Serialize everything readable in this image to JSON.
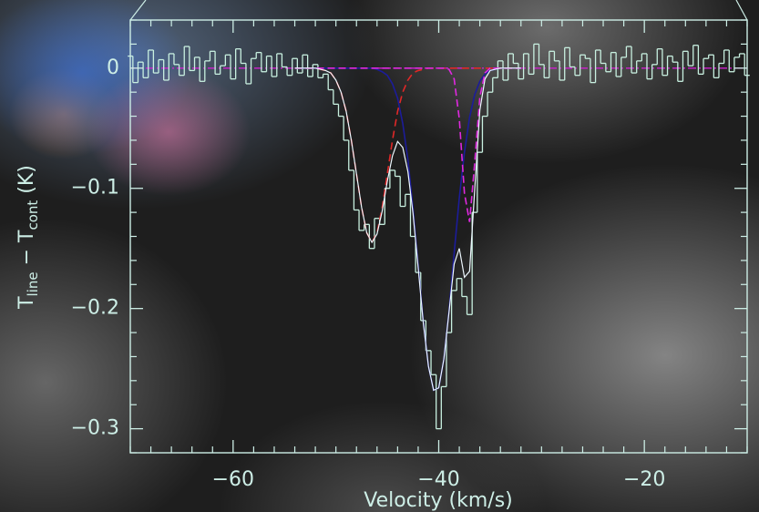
{
  "chart_data": {
    "type": "line",
    "xlabel": "Velocity (km/s)",
    "ylabel": [
      "T",
      "line",
      " − T",
      "cont",
      " (K)"
    ],
    "xlim": [
      -70,
      -10
    ],
    "ylim": [
      -0.32,
      0.04
    ],
    "xticks": [
      {
        "value": -60,
        "label": "−60"
      },
      {
        "value": -40,
        "label": "−40"
      },
      {
        "value": -20,
        "label": "−20"
      }
    ],
    "yticks": [
      0,
      {
        "value": -0.1,
        "label": "−0.1"
      },
      {
        "value": -0.2,
        "label": "−0.2"
      },
      {
        "value": -0.3,
        "label": "−0.3"
      }
    ],
    "xminor": [
      -70,
      -68,
      -66,
      -64,
      -62,
      -58,
      -56,
      -54,
      -52,
      -50,
      -48,
      -46,
      -44,
      -42,
      -38,
      -36,
      -34,
      -32,
      -30,
      -28,
      -26,
      -24,
      -22,
      -18,
      -16,
      -14,
      -12,
      -10
    ],
    "yminor": [
      -0.32,
      -0.28,
      -0.26,
      -0.24,
      -0.22,
      -0.18,
      -0.16,
      -0.14,
      -0.12,
      -0.08,
      -0.06,
      -0.04,
      -0.02,
      0.02,
      0.04
    ],
    "axis_color": "#cdeee6",
    "baseline": {
      "value": 0,
      "color": "#d020d0",
      "dash": "9 3 2 3"
    },
    "spectrum": {
      "color": "#c8f0e0",
      "x": [
        -70,
        -69.5,
        -69,
        -68.5,
        -68,
        -67.5,
        -67,
        -66.5,
        -66,
        -65.5,
        -65,
        -64.5,
        -64,
        -63.5,
        -63,
        -62.5,
        -62,
        -61.5,
        -61,
        -60.5,
        -60,
        -59.5,
        -59,
        -58.5,
        -58,
        -57.5,
        -57,
        -56.5,
        -56,
        -55.5,
        -55,
        -54.5,
        -54,
        -53.5,
        -53,
        -52.5,
        -52,
        -51.5,
        -51,
        -50.5,
        -50,
        -49.5,
        -49,
        -48.5,
        -48,
        -47.5,
        -47,
        -46.5,
        -46,
        -45.5,
        -45,
        -44.5,
        -44,
        -43.5,
        -43,
        -42.5,
        -42,
        -41.5,
        -41,
        -40.5,
        -40,
        -39.5,
        -39,
        -38.5,
        -38,
        -37.5,
        -37,
        -36.5,
        -36,
        -35.5,
        -35,
        -34.5,
        -34,
        -33.5,
        -33,
        -32.5,
        -32,
        -31.5,
        -31,
        -30.5,
        -30,
        -29.5,
        -29,
        -28.5,
        -28,
        -27.5,
        -27,
        -26.5,
        -26,
        -25.5,
        -25,
        -24.5,
        -24,
        -23.5,
        -23,
        -22.5,
        -22,
        -21.5,
        -21,
        -20.5,
        -20,
        -19.5,
        -19,
        -18.5,
        -18,
        -17.5,
        -17,
        -16.5,
        -16,
        -15.5,
        -15,
        -14.5,
        -14,
        -13.5,
        -13,
        -12.5,
        -12,
        -11.5,
        -11,
        -10.5,
        -10
      ],
      "values": [
        0.01,
        -0.012,
        0.005,
        -0.008,
        0.015,
        -0.004,
        0.007,
        -0.01,
        0.012,
        0.003,
        -0.006,
        0.018,
        -0.002,
        0.009,
        -0.011,
        0.006,
        0.014,
        -0.005,
        0.002,
        0.011,
        -0.009,
        0.016,
        0.004,
        -0.013,
        0.008,
        0.013,
        -0.003,
        0.01,
        -0.007,
        0.012,
        0.001,
        -0.006,
        0.008,
        -0.004,
        0.011,
        -0.007,
        0.003,
        -0.008,
        -0.005,
        -0.018,
        -0.03,
        -0.04,
        -0.06,
        -0.085,
        -0.118,
        -0.135,
        -0.13,
        -0.15,
        -0.125,
        -0.13,
        -0.1,
        -0.085,
        -0.09,
        -0.115,
        -0.105,
        -0.14,
        -0.17,
        -0.21,
        -0.235,
        -0.255,
        -0.3,
        -0.265,
        -0.22,
        -0.185,
        -0.175,
        -0.19,
        -0.205,
        -0.12,
        -0.07,
        -0.04,
        -0.02,
        -0.008,
        0.006,
        -0.01,
        0.012,
        0.004,
        -0.009,
        0.012,
        -0.005,
        0.02,
        0.003,
        -0.008,
        0.014,
        0.006,
        -0.01,
        0.017,
        0.001,
        -0.006,
        0.011,
        0.008,
        -0.012,
        0.015,
        0.004,
        -0.003,
        0.013,
        -0.007,
        0.009,
        0.018,
        -0.004,
        0.006,
        0.012,
        -0.009,
        0.003,
        0.016,
        -0.006,
        0.01,
        0.005,
        -0.011,
        0.014,
        0.002,
        0.019,
        -0.005,
        0.008,
        0.011,
        -0.008,
        0.004,
        0.015,
        -0.003,
        0.009,
        0.012,
        -0.006
      ]
    },
    "fits": {
      "x": [
        -54,
        -53.5,
        -53,
        -52.5,
        -52,
        -51.5,
        -51,
        -50.5,
        -50,
        -49.5,
        -49,
        -48.5,
        -48,
        -47.5,
        -47,
        -46.5,
        -46,
        -45.5,
        -45,
        -44.5,
        -44,
        -43.5,
        -43,
        -42.5,
        -42,
        -41.5,
        -41,
        -40.5,
        -40,
        -39.5,
        -39,
        -38.5,
        -38,
        -37.5,
        -37,
        -36.5,
        -36,
        -35.5,
        -35,
        -34.5,
        -34,
        -33.5,
        -33,
        -32.5,
        -32
      ],
      "series": [
        {
          "color": "#e02828",
          "dash": "8 5",
          "width": 1.6,
          "values": [
            0,
            0,
            0,
            0,
            0,
            -0.001,
            -0.002,
            -0.004,
            -0.01,
            -0.02,
            -0.036,
            -0.06,
            -0.088,
            -0.116,
            -0.137,
            -0.145,
            -0.137,
            -0.116,
            -0.088,
            -0.06,
            -0.036,
            -0.02,
            -0.01,
            -0.004,
            -0.002,
            -0.001,
            0,
            0,
            0,
            0,
            0,
            0,
            0,
            0,
            0,
            0,
            0,
            0,
            0,
            0,
            0,
            0,
            0,
            0,
            0
          ]
        },
        {
          "color": "#1c1c9a",
          "dash": "none",
          "width": 1.6,
          "values": [
            0,
            0,
            0,
            0,
            0,
            0,
            0,
            0,
            0,
            0,
            0,
            0,
            0,
            0,
            0,
            0,
            -0.001,
            -0.003,
            -0.006,
            -0.013,
            -0.025,
            -0.046,
            -0.076,
            -0.117,
            -0.164,
            -0.211,
            -0.248,
            -0.268,
            -0.266,
            -0.242,
            -0.202,
            -0.154,
            -0.108,
            -0.07,
            -0.041,
            -0.022,
            -0.011,
            -0.005,
            -0.002,
            -0.001,
            0,
            0,
            0,
            0,
            0
          ]
        },
        {
          "color": "#e028e0",
          "dash": "8 4",
          "width": 1.6,
          "values": [
            0,
            0,
            0,
            0,
            0,
            0,
            0,
            0,
            0,
            0,
            0,
            0,
            0,
            0,
            0,
            0,
            0,
            0,
            0,
            0,
            0,
            0,
            0,
            0,
            0,
            0,
            0,
            0,
            0,
            0,
            -0.001,
            -0.009,
            -0.042,
            -0.104,
            -0.128,
            -0.079,
            -0.024,
            -0.004,
            0,
            0,
            0,
            0,
            0,
            0,
            0
          ]
        },
        {
          "color": "#eef8ff",
          "dash": "none",
          "width": 1.2,
          "values": [
            0,
            0,
            0,
            0,
            0,
            -0.001,
            -0.002,
            -0.004,
            -0.01,
            -0.02,
            -0.036,
            -0.06,
            -0.088,
            -0.116,
            -0.137,
            -0.145,
            -0.138,
            -0.119,
            -0.094,
            -0.073,
            -0.061,
            -0.066,
            -0.086,
            -0.121,
            -0.166,
            -0.212,
            -0.248,
            -0.268,
            -0.266,
            -0.242,
            -0.203,
            -0.163,
            -0.15,
            -0.174,
            -0.169,
            -0.101,
            -0.035,
            -0.009,
            -0.002,
            -0.001,
            0,
            0,
            0,
            0,
            0
          ]
        }
      ]
    }
  }
}
